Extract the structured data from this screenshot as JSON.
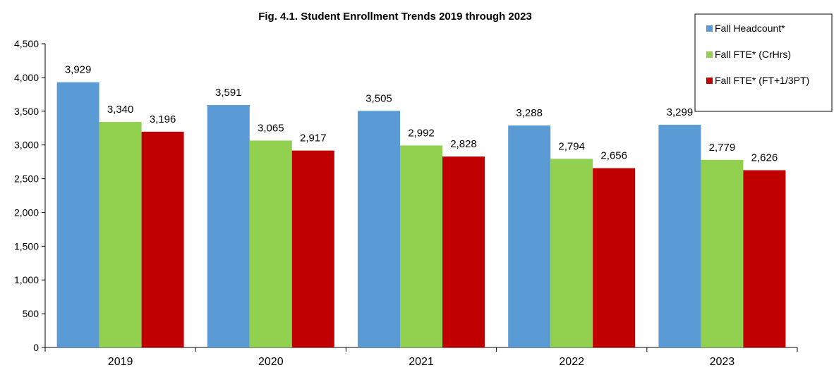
{
  "chart_data": {
    "type": "bar",
    "title": "Fig. 4.1. Student Enrollment Trends 2019 through 2023",
    "xlabel": "",
    "ylabel": "",
    "categories": [
      "2019",
      "2020",
      "2021",
      "2022",
      "2023"
    ],
    "ylim": [
      0,
      4500
    ],
    "yticks": [
      0,
      500,
      1000,
      1500,
      2000,
      2500,
      3000,
      3500,
      4000,
      4500
    ],
    "ytick_labels": [
      "0",
      "500",
      "1,000",
      "1,500",
      "2,000",
      "2,500",
      "3,000",
      "3,500",
      "4,000",
      "4,500"
    ],
    "grid": false,
    "legend_position": "top-right",
    "series": [
      {
        "name": "Fall Headcount*",
        "color": "#5B9BD5",
        "values": [
          3929,
          3591,
          3505,
          3288,
          3299
        ],
        "labels": [
          "3,929",
          "3,591",
          "3,505",
          "3,288",
          "3,299"
        ]
      },
      {
        "name": "Fall FTE* (CrHrs)",
        "color": "#92D050",
        "values": [
          3340,
          3065,
          2992,
          2794,
          2779
        ],
        "labels": [
          "3,340",
          "3,065",
          "2,992",
          "2,794",
          "2,779"
        ]
      },
      {
        "name": "Fall FTE* (FT+1/3PT)",
        "color": "#C00000",
        "values": [
          3196,
          2917,
          2828,
          2656,
          2626
        ],
        "labels": [
          "3,196",
          "2,917",
          "2,828",
          "2,656",
          "2,626"
        ]
      }
    ]
  }
}
